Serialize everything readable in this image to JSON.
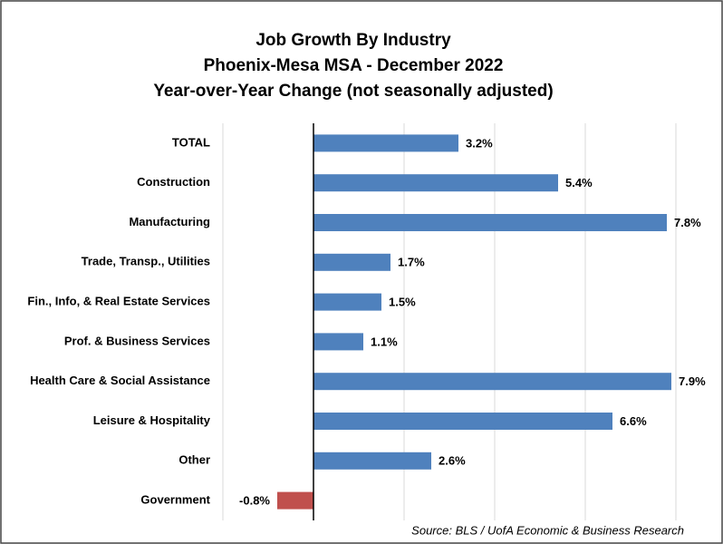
{
  "chart_data": {
    "type": "hbar",
    "title": [
      "Job Growth By Industry",
      "Phoenix-Mesa MSA - December 2022",
      "Year-over-Year Change (not seasonally adjusted)"
    ],
    "categories": [
      "TOTAL",
      "Construction",
      "Manufacturing",
      "Trade, Transp., Utilities",
      "Fin., Info, & Real Estate Services",
      "Prof. & Business Services",
      "Health Care & Social Assistance",
      "Leisure & Hospitality",
      "Other",
      "Government"
    ],
    "values": [
      3.2,
      5.4,
      7.8,
      1.7,
      1.5,
      1.1,
      7.9,
      6.6,
      2.6,
      -0.8
    ],
    "value_labels": [
      "3.2%",
      "5.4%",
      "7.8%",
      "1.7%",
      "1.5%",
      "1.1%",
      "7.9%",
      "6.6%",
      "2.6%",
      "-0.8%"
    ],
    "colors": [
      "#4f81bd",
      "#4f81bd",
      "#4f81bd",
      "#4f81bd",
      "#4f81bd",
      "#4f81bd",
      "#4f81bd",
      "#4f81bd",
      "#4f81bd",
      "#c0504d"
    ],
    "xlim": [
      -2,
      8
    ],
    "xticks": [
      -2,
      0,
      2,
      4,
      6,
      8
    ],
    "grid": true,
    "source": "Source: BLS / UofA Economic & Business Research"
  }
}
